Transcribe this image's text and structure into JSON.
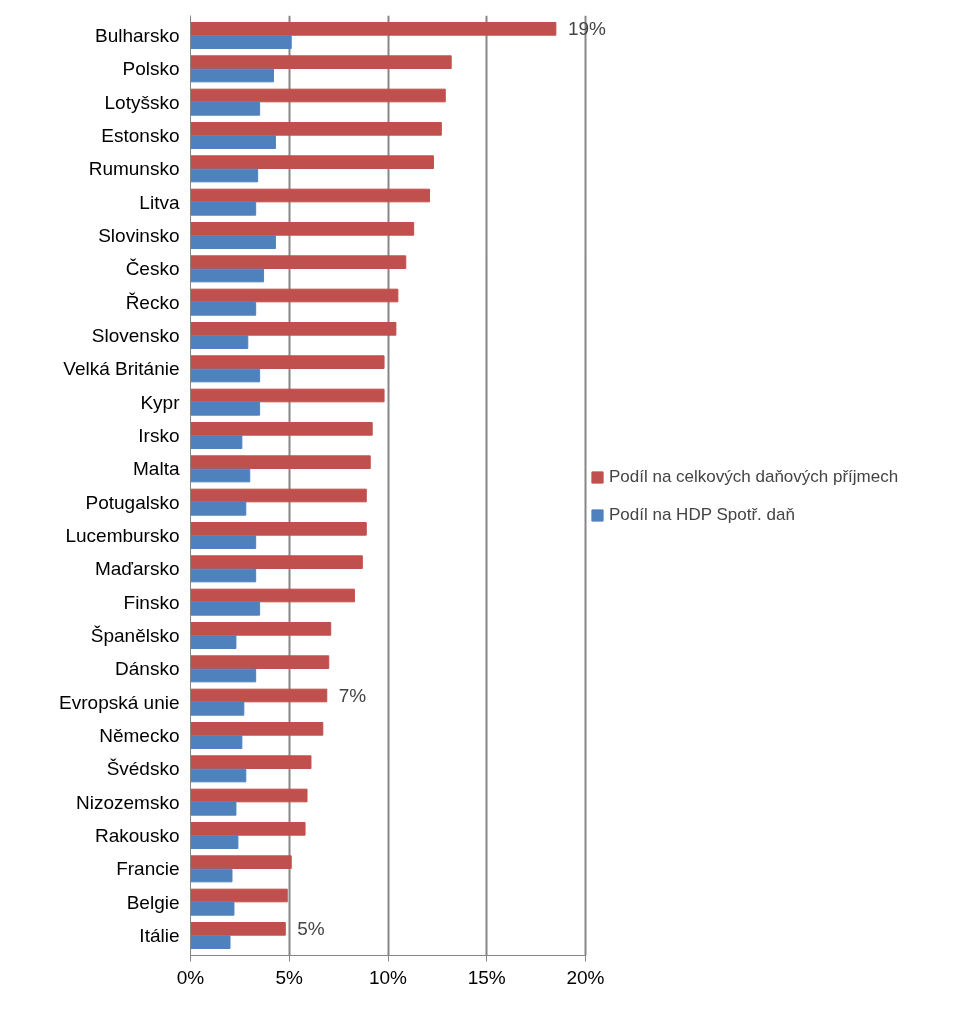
{
  "chart_data": {
    "type": "bar",
    "orientation": "horizontal",
    "categories": [
      "Bulharsko",
      "Polsko",
      "Lotyšsko",
      "Estonsko",
      "Rumunsko",
      "Litva",
      "Slovinsko",
      "Česko",
      "Řecko",
      "Slovensko",
      "Velká Británie",
      "Kypr",
      "Irsko",
      "Malta",
      "Potugalsko",
      "Lucembursko",
      "Maďarsko",
      "Finsko",
      "Španělsko",
      "Dánsko",
      "Evropská unie",
      "Německo",
      "Švédsko",
      "Nizozemsko",
      "Rakousko",
      "Francie",
      "Belgie",
      "Itálie"
    ],
    "series": [
      {
        "name": "Podíl na celkových daňových příjmech",
        "color": "#c0504d",
        "values": [
          18.5,
          13.2,
          12.9,
          12.7,
          12.3,
          12.1,
          11.3,
          10.9,
          10.5,
          10.4,
          9.8,
          9.8,
          9.2,
          9.1,
          8.9,
          8.9,
          8.7,
          8.3,
          7.1,
          7.0,
          6.9,
          6.7,
          6.1,
          5.9,
          5.8,
          5.1,
          4.9,
          4.8
        ]
      },
      {
        "name": "Podíl na HDP Spotř. daň",
        "color": "#4f81bd",
        "values": [
          5.1,
          4.2,
          3.5,
          4.3,
          3.4,
          3.3,
          4.3,
          3.7,
          3.3,
          2.9,
          3.5,
          3.5,
          2.6,
          3.0,
          2.8,
          3.3,
          3.3,
          3.5,
          2.3,
          3.3,
          2.7,
          2.6,
          2.8,
          2.3,
          2.4,
          2.1,
          2.2,
          2.0
        ]
      }
    ],
    "xlim": [
      0,
      20
    ],
    "xticks": [
      {
        "value": 0,
        "label": "0%"
      },
      {
        "value": 5,
        "label": "5%"
      },
      {
        "value": 10,
        "label": "10%"
      },
      {
        "value": 15,
        "label": "15%"
      },
      {
        "value": 20,
        "label": "20%"
      }
    ],
    "annotations": [
      {
        "text": "19%",
        "x": 18.5,
        "y": "Bulharsko"
      },
      {
        "text": "7%",
        "x": 6.9,
        "y": "Evropská unie"
      },
      {
        "text": "5%",
        "x": 4.8,
        "y": "Itálie"
      }
    ],
    "grid": "x",
    "legend": "right"
  }
}
